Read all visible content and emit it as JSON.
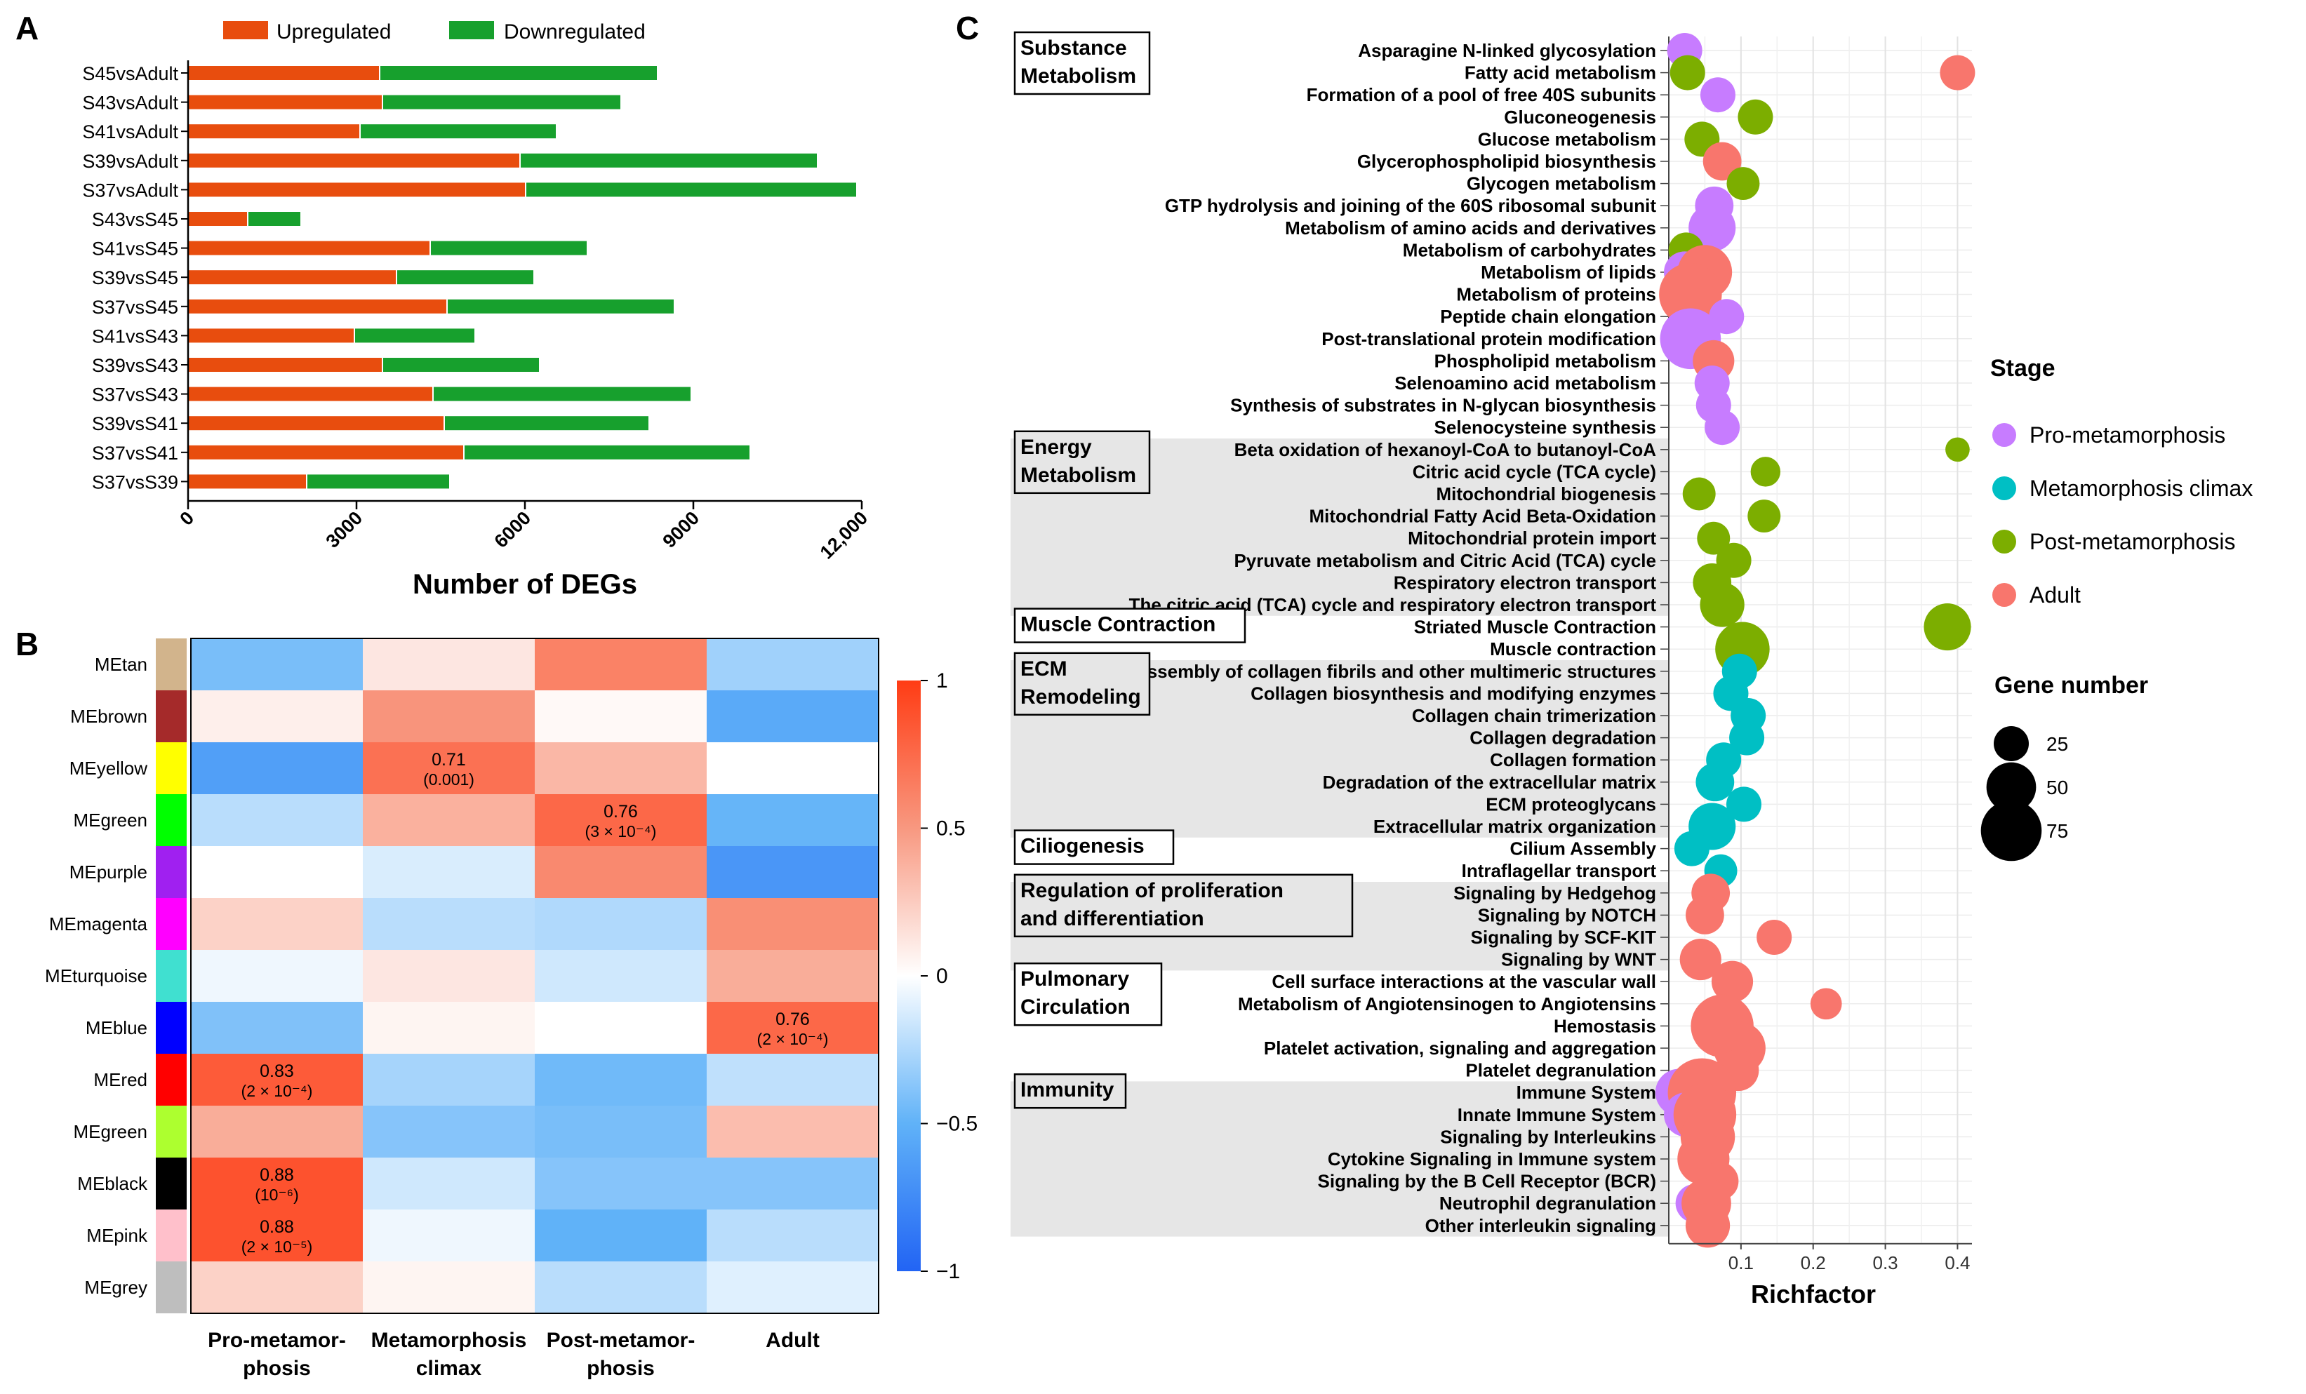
{
  "panel_labels": {
    "a": "A",
    "b": "B",
    "c": "C"
  },
  "chart_data": [
    {
      "type": "bar",
      "orientation": "horizontal",
      "stacked": true,
      "xlabel": "Number of DEGs",
      "xlim": [
        0,
        12000
      ],
      "xticks": [
        0,
        3000,
        6000,
        9000,
        12000
      ],
      "xtick_labels": [
        "0",
        "3000",
        "6000",
        "9000",
        "12,000"
      ],
      "legend_position": "top",
      "colors": {
        "Upregulated": "#e84d0e",
        "Downregulated": "#17a02d"
      },
      "categories": [
        "S45vsAdult",
        "S43vsAdult",
        "S41vsAdult",
        "S39vsAdult",
        "S37vsAdult",
        "S43vsS45",
        "S41vsS45",
        "S39vsS45",
        "S37vsS45",
        "S41vsS43",
        "S39vsS43",
        "S37vsS43",
        "S39vsS41",
        "S37vsS41",
        "S37vsS39"
      ],
      "series": [
        {
          "name": "Upregulated",
          "values": [
            3400,
            3450,
            3050,
            5900,
            6000,
            1050,
            4300,
            3700,
            4600,
            2950,
            3450,
            4350,
            4550,
            4900,
            2100
          ]
        },
        {
          "name": "Downregulated",
          "values": [
            4950,
            4250,
            3500,
            5300,
            5900,
            950,
            2800,
            2450,
            4050,
            2150,
            2800,
            4600,
            3650,
            5100,
            2550
          ]
        }
      ]
    },
    {
      "type": "heatmap",
      "columns": [
        "Pro-metamor-|phosis",
        "Metamorphosis|climax",
        "Post-metamor-|phosis",
        "Adult"
      ],
      "rows": [
        "MEtan",
        "MEbrown",
        "MEyellow",
        "MEgreen",
        "MEpurple",
        "MEmagenta",
        "MEturquoise",
        "MEblue",
        "MEred",
        "MEgreen",
        "MEblack",
        "MEpink",
        "MEgrey"
      ],
      "row_colors": [
        "#d2b48c",
        "#a52a2a",
        "#ffff00",
        "#00ff00",
        "#a020f0",
        "#ff00ff",
        "#40e0d0",
        "#0000ff",
        "#ff0000",
        "#adff2f",
        "#000000",
        "#ffc0cb",
        "#bebebe"
      ],
      "values": [
        [
          -0.42,
          0.12,
          0.62,
          -0.3
        ],
        [
          0.08,
          0.52,
          0.03,
          -0.55
        ],
        [
          -0.62,
          0.71,
          0.35,
          0.0
        ],
        [
          -0.22,
          0.38,
          0.76,
          -0.48
        ],
        [
          0.0,
          -0.12,
          0.58,
          -0.68
        ],
        [
          0.22,
          -0.22,
          -0.25,
          0.55
        ],
        [
          -0.05,
          0.12,
          -0.15,
          0.4
        ],
        [
          -0.4,
          0.05,
          0.0,
          0.76
        ],
        [
          0.83,
          -0.28,
          -0.45,
          -0.2
        ],
        [
          0.4,
          -0.38,
          -0.42,
          0.32
        ],
        [
          0.88,
          -0.15,
          -0.38,
          -0.38
        ],
        [
          0.88,
          -0.05,
          -0.5,
          -0.22
        ],
        [
          0.22,
          0.05,
          -0.22,
          -0.1
        ]
      ],
      "annotations": [
        {
          "row": 2,
          "col": 1,
          "value": "0.71",
          "p": "(0.001)"
        },
        {
          "row": 3,
          "col": 2,
          "value": "0.76",
          "p": "(3 × 10⁻⁴)"
        },
        {
          "row": 7,
          "col": 3,
          "value": "0.76",
          "p": "(2 × 10⁻⁴)"
        },
        {
          "row": 8,
          "col": 0,
          "value": "0.83",
          "p": "(2 × 10⁻⁴)"
        },
        {
          "row": 10,
          "col": 0,
          "value": "0.88",
          "p": "(10⁻⁶)"
        },
        {
          "row": 11,
          "col": 0,
          "value": "0.88",
          "p": "(2 × 10⁻⁵)"
        }
      ],
      "colorbar": {
        "min": -1,
        "max": 1,
        "ticks": [
          1,
          0.5,
          0,
          -0.5,
          -1
        ],
        "tick_labels": [
          "1",
          "0.5",
          "0",
          "−0.5",
          "−1"
        ]
      }
    },
    {
      "type": "scatter",
      "subtype": "dot plot",
      "xlabel": "Richfactor",
      "xlim": [
        0,
        0.42
      ],
      "xticks": [
        0.1,
        0.2,
        0.3,
        0.4
      ],
      "xtick_labels": [
        "0.1",
        "0.2",
        "0.3",
        "0.4"
      ],
      "grid": true,
      "stage_colors": {
        "Pro-metamorphosis": "#c77cff",
        "Metamorphosis climax": "#00bfc4",
        "Post-metamorphosis": "#7cae00",
        "Adult": "#f8766d"
      },
      "stage_legend_title": "Stage",
      "stages": [
        "Pro-metamorphosis",
        "Metamorphosis climax",
        "Post-metamorphosis",
        "Adult"
      ],
      "size_legend_title": "Gene number",
      "size_legend": [
        25,
        50,
        75
      ],
      "groups": [
        {
          "title": "Substance|Metabolism",
          "start": 0,
          "end": 17,
          "shaded": false
        },
        {
          "title": "Energy|Metabolism",
          "start": 18,
          "end": 25,
          "shaded": true
        },
        {
          "title": "Muscle Contraction",
          "start": 26,
          "end": 27,
          "shaded": false
        },
        {
          "title": "ECM|Remodeling",
          "start": 28,
          "end": 35,
          "shaded": true
        },
        {
          "title": "Ciliogenesis",
          "start": 36,
          "end": 37,
          "shaded": false
        },
        {
          "title": "Regulation of proliferation|and differentiation",
          "start": 38,
          "end": 41,
          "shaded": true
        },
        {
          "title": "Pulmonary|Circulation",
          "start": 42,
          "end": 46,
          "shaded": false
        },
        {
          "title": "Immunity",
          "start": 47,
          "end": 53,
          "shaded": true
        }
      ],
      "terms": [
        "Asparagine N-linked glycosylation",
        "Fatty acid metabolism",
        "Formation of a pool of free 40S subunits",
        "Gluconeogenesis",
        "Glucose metabolism",
        "Glycerophospholipid biosynthesis",
        "Glycogen metabolism",
        "GTP hydrolysis and joining of the 60S ribosomal subunit",
        "Metabolism of amino acids and derivatives",
        "Metabolism of carbohydrates",
        "Metabolism of lipids",
        "Metabolism of proteins",
        "Peptide chain elongation",
        "Post-translational protein modification",
        "Phospholipid metabolism",
        "Selenoamino acid metabolism",
        "Synthesis of substrates in N-glycan biosynthesis",
        "Selenocysteine synthesis",
        "Beta oxidation of hexanoyl-CoA to butanoyl-CoA",
        "Citric acid cycle (TCA cycle)",
        "Mitochondrial biogenesis",
        "Mitochondrial Fatty Acid Beta-Oxidation",
        "Mitochondrial protein import",
        "Pyruvate metabolism and Citric Acid (TCA) cycle",
        "Respiratory electron transport",
        "The citric acid (TCA) cycle and respiratory electron transport",
        "Striated Muscle Contraction",
        "Muscle contraction",
        "Assembly of collagen fibrils and other multimeric structures",
        "Collagen biosynthesis and modifying enzymes",
        "Collagen chain trimerization",
        "Collagen degradation",
        "Collagen formation",
        "Degradation of the extracellular matrix",
        "ECM proteoglycans",
        "Extracellular matrix organization",
        "Cilium Assembly",
        "Intraflagellar transport",
        "Signaling by Hedgehog",
        "Signaling by NOTCH",
        "Signaling by SCF-KIT",
        "Signaling by WNT",
        "Cell surface interactions at the vascular wall",
        "Metabolism of Angiotensinogen to Angiotensins",
        "Hemostasis",
        "Platelet activation, signaling and aggregation",
        "Platelet degranulation",
        "Immune System",
        "Innate Immune System",
        "Signaling by Interleukins",
        "Cytokine Signaling in Immune system",
        "Signaling by the B Cell Receptor (BCR)",
        "Neutrophil degranulation",
        "Other interleukin signaling"
      ],
      "points": [
        {
          "term": 0,
          "stage": "Pro-metamorphosis",
          "x": 0.022,
          "n": 25
        },
        {
          "term": 1,
          "stage": "Post-metamorphosis",
          "x": 0.026,
          "n": 25
        },
        {
          "term": 1,
          "stage": "Adult",
          "x": 0.4,
          "n": 25
        },
        {
          "term": 2,
          "stage": "Pro-metamorphosis",
          "x": 0.068,
          "n": 25
        },
        {
          "term": 3,
          "stage": "Post-metamorphosis",
          "x": 0.12,
          "n": 25
        },
        {
          "term": 4,
          "stage": "Post-metamorphosis",
          "x": 0.046,
          "n": 25
        },
        {
          "term": 5,
          "stage": "Adult",
          "x": 0.074,
          "n": 30
        },
        {
          "term": 6,
          "stage": "Post-metamorphosis",
          "x": 0.103,
          "n": 22
        },
        {
          "term": 7,
          "stage": "Pro-metamorphosis",
          "x": 0.063,
          "n": 30
        },
        {
          "term": 8,
          "stage": "Pro-metamorphosis",
          "x": 0.06,
          "n": 45
        },
        {
          "term": 9,
          "stage": "Pro-metamorphosis",
          "x": 0.042,
          "n": 30
        },
        {
          "term": 9,
          "stage": "Post-metamorphosis",
          "x": 0.024,
          "n": 25
        },
        {
          "term": 10,
          "stage": "Pro-metamorphosis",
          "x": 0.022,
          "n": 35
        },
        {
          "term": 10,
          "stage": "Adult",
          "x": 0.05,
          "n": 60
        },
        {
          "term": 11,
          "stage": "Pro-metamorphosis",
          "x": 0.036,
          "n": 45
        },
        {
          "term": 11,
          "stage": "Adult",
          "x": 0.03,
          "n": 80
        },
        {
          "term": 12,
          "stage": "Pro-metamorphosis",
          "x": 0.08,
          "n": 25
        },
        {
          "term": 13,
          "stage": "Pro-metamorphosis",
          "x": 0.03,
          "n": 75
        },
        {
          "term": 14,
          "stage": "Adult",
          "x": 0.062,
          "n": 35
        },
        {
          "term": 15,
          "stage": "Pro-metamorphosis",
          "x": 0.06,
          "n": 25
        },
        {
          "term": 16,
          "stage": "Pro-metamorphosis",
          "x": 0.062,
          "n": 25
        },
        {
          "term": 17,
          "stage": "Pro-metamorphosis",
          "x": 0.074,
          "n": 25
        },
        {
          "term": 18,
          "stage": "Post-metamorphosis",
          "x": 0.4,
          "n": 12
        },
        {
          "term": 19,
          "stage": "Post-metamorphosis",
          "x": 0.134,
          "n": 18
        },
        {
          "term": 20,
          "stage": "Post-metamorphosis",
          "x": 0.042,
          "n": 22
        },
        {
          "term": 21,
          "stage": "Post-metamorphosis",
          "x": 0.132,
          "n": 22
        },
        {
          "term": 22,
          "stage": "Post-metamorphosis",
          "x": 0.062,
          "n": 22
        },
        {
          "term": 23,
          "stage": "Post-metamorphosis",
          "x": 0.09,
          "n": 25
        },
        {
          "term": 24,
          "stage": "Post-metamorphosis",
          "x": 0.06,
          "n": 30
        },
        {
          "term": 25,
          "stage": "Post-metamorphosis",
          "x": 0.074,
          "n": 40
        },
        {
          "term": 26,
          "stage": "Post-metamorphosis",
          "x": 0.386,
          "n": 45
        },
        {
          "term": 27,
          "stage": "Post-metamorphosis",
          "x": 0.102,
          "n": 60
        },
        {
          "term": 28,
          "stage": "Metamorphosis climax",
          "x": 0.098,
          "n": 25
        },
        {
          "term": 29,
          "stage": "Metamorphosis climax",
          "x": 0.086,
          "n": 25
        },
        {
          "term": 30,
          "stage": "Metamorphosis climax",
          "x": 0.11,
          "n": 25
        },
        {
          "term": 31,
          "stage": "Metamorphosis climax",
          "x": 0.108,
          "n": 25
        },
        {
          "term": 32,
          "stage": "Metamorphosis climax",
          "x": 0.076,
          "n": 25
        },
        {
          "term": 33,
          "stage": "Metamorphosis climax",
          "x": 0.064,
          "n": 30
        },
        {
          "term": 34,
          "stage": "Metamorphosis climax",
          "x": 0.104,
          "n": 25
        },
        {
          "term": 35,
          "stage": "Metamorphosis climax",
          "x": 0.06,
          "n": 45
        },
        {
          "term": 36,
          "stage": "Metamorphosis climax",
          "x": 0.032,
          "n": 25
        },
        {
          "term": 37,
          "stage": "Metamorphosis climax",
          "x": 0.072,
          "n": 22
        },
        {
          "term": 38,
          "stage": "Adult",
          "x": 0.058,
          "n": 30
        },
        {
          "term": 39,
          "stage": "Adult",
          "x": 0.05,
          "n": 30
        },
        {
          "term": 40,
          "stage": "Adult",
          "x": 0.146,
          "n": 25
        },
        {
          "term": 41,
          "stage": "Adult",
          "x": 0.044,
          "n": 35
        },
        {
          "term": 42,
          "stage": "Adult",
          "x": 0.088,
          "n": 35
        },
        {
          "term": 43,
          "stage": "Adult",
          "x": 0.218,
          "n": 20
        },
        {
          "term": 44,
          "stage": "Adult",
          "x": 0.074,
          "n": 80
        },
        {
          "term": 45,
          "stage": "Adult",
          "x": 0.098,
          "n": 55
        },
        {
          "term": 46,
          "stage": "Adult",
          "x": 0.096,
          "n": 35
        },
        {
          "term": 47,
          "stage": "Pro-metamorphosis",
          "x": 0.014,
          "n": 45
        },
        {
          "term": 47,
          "stage": "Adult",
          "x": 0.046,
          "n": 95
        },
        {
          "term": 48,
          "stage": "Pro-metamorphosis",
          "x": 0.024,
          "n": 40
        },
        {
          "term": 48,
          "stage": "Adult",
          "x": 0.05,
          "n": 80
        },
        {
          "term": 49,
          "stage": "Adult",
          "x": 0.054,
          "n": 60
        },
        {
          "term": 50,
          "stage": "Adult",
          "x": 0.048,
          "n": 55
        },
        {
          "term": 51,
          "stage": "Adult",
          "x": 0.07,
          "n": 30
        },
        {
          "term": 52,
          "stage": "Pro-metamorphosis",
          "x": 0.036,
          "n": 30
        },
        {
          "term": 52,
          "stage": "Adult",
          "x": 0.052,
          "n": 50
        },
        {
          "term": 53,
          "stage": "Adult",
          "x": 0.054,
          "n": 40
        }
      ]
    }
  ]
}
